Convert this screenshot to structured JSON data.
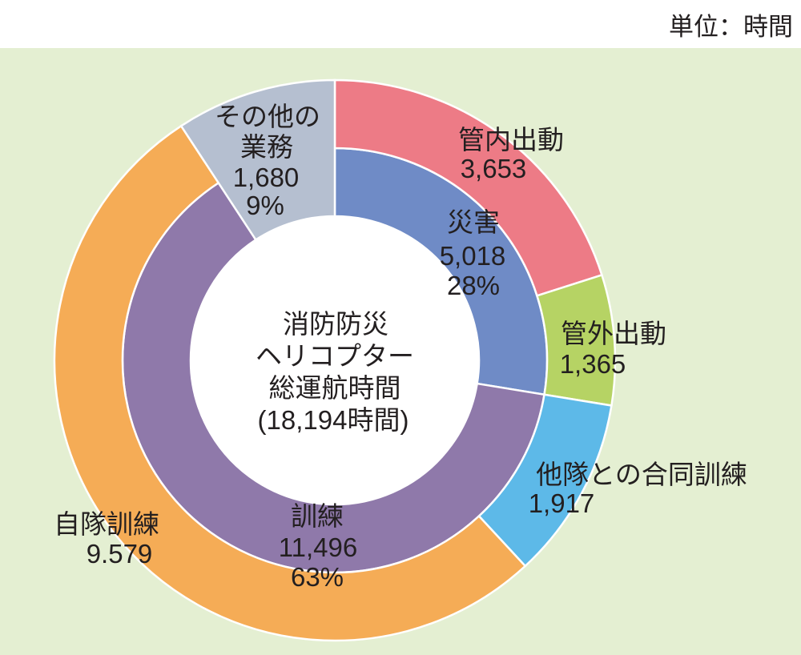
{
  "unit_label": "単位：時間",
  "colors": {
    "page_background": "#ffffff",
    "chart_background": "#e4efd2",
    "center_hole": "#ffffff",
    "separator": "#ffffff",
    "text": "#231f20"
  },
  "chart_data": {
    "type": "pie",
    "center_label": [
      "消防防災",
      "ヘリコプター",
      "総運航時間",
      "(18,194時間)"
    ],
    "categories": [
      {
        "name": "災害",
        "value": 5018,
        "value_label": "5,018",
        "percent_label": "28%",
        "color": "#6f8bc6",
        "children": [
          {
            "name": "管内出動",
            "value": 3653,
            "value_label": "3,653",
            "color": "#ed7b86"
          },
          {
            "name": "管外出動",
            "value": 1365,
            "value_label": "1,365",
            "color": "#b6d364"
          }
        ]
      },
      {
        "name": "訓練",
        "value": 11496,
        "value_label": "11,496",
        "percent_label": "63%",
        "color": "#8f79aa",
        "children": [
          {
            "name": "他隊との合同訓練",
            "value": 1917,
            "value_label": "1,917",
            "color": "#5db9e8"
          },
          {
            "name": "自隊訓練",
            "value": 9579,
            "value_label": "9.579",
            "color": "#f5ac56"
          }
        ]
      },
      {
        "name_lines": [
          "その他の",
          "業務"
        ],
        "value": 1680,
        "value_label": "1,680",
        "percent_label": "9%",
        "color": "#b5bfd0",
        "children": []
      }
    ]
  }
}
